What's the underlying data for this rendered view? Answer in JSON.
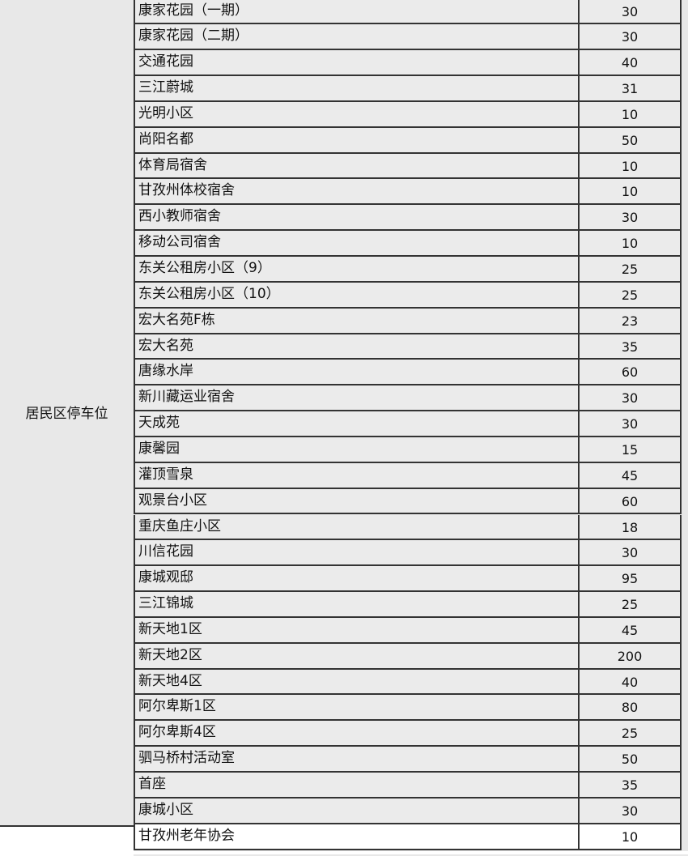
{
  "group_label": "居民区停车位",
  "rows": [
    {
      "name": "康家花园（一期）",
      "value": "30"
    },
    {
      "name": "康家花园（二期）",
      "value": "30"
    },
    {
      "name": "交通花园",
      "value": "40"
    },
    {
      "name": "三江蔚城",
      "value": "31"
    },
    {
      "name": "光明小区",
      "value": "10"
    },
    {
      "name": "尚阳名都",
      "value": "50"
    },
    {
      "name": "体育局宿舍",
      "value": "10"
    },
    {
      "name": "甘孜州体校宿舍",
      "value": "10"
    },
    {
      "name": "西小教师宿舍",
      "value": "30"
    },
    {
      "name": "移动公司宿舍",
      "value": "10"
    },
    {
      "name": "东关公租房小区（9）",
      "value": "25"
    },
    {
      "name": "东关公租房小区（10）",
      "value": "25"
    },
    {
      "name": "宏大名苑F栋",
      "value": "23"
    },
    {
      "name": "宏大名苑",
      "value": "35"
    },
    {
      "name": "唐缘水岸",
      "value": "60"
    },
    {
      "name": "新川藏运业宿舍",
      "value": "30"
    },
    {
      "name": "天成苑",
      "value": "30"
    },
    {
      "name": "康馨园",
      "value": "15"
    },
    {
      "name": "灌顶雪泉",
      "value": "45"
    },
    {
      "name": "观景台小区",
      "value": "60"
    },
    {
      "name": "重庆鱼庄小区",
      "value": "18"
    },
    {
      "name": "川信花园",
      "value": "30"
    },
    {
      "name": "康城观邸",
      "value": "95"
    },
    {
      "name": "三江锦城",
      "value": "25"
    },
    {
      "name": "新天地1区",
      "value": "45"
    },
    {
      "name": "新天地2区",
      "value": "200"
    },
    {
      "name": "新天地4区",
      "value": "40"
    },
    {
      "name": "阿尔卑斯1区",
      "value": "80"
    },
    {
      "name": "阿尔卑斯4区",
      "value": "25"
    },
    {
      "name": "驷马桥村活动室",
      "value": "50"
    },
    {
      "name": "首座",
      "value": "35"
    },
    {
      "name": "康城小区",
      "value": "30"
    }
  ],
  "last_row": {
    "name": "甘孜州老年协会",
    "value": "10"
  }
}
